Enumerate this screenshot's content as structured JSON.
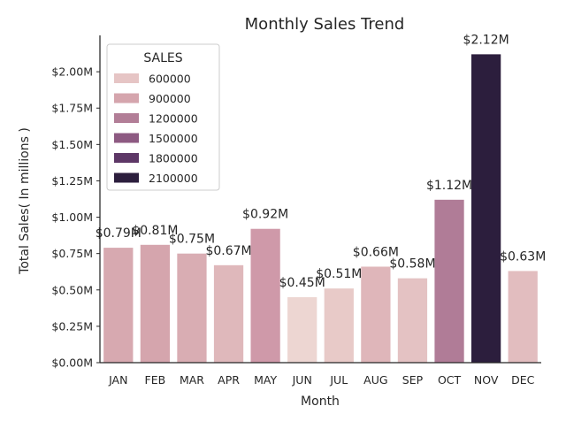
{
  "chart_data": {
    "type": "bar",
    "title": "Monthly Sales Trend",
    "xlabel": "Month",
    "ylabel": "Total Sales( In millions )",
    "categories": [
      "JAN",
      "FEB",
      "MAR",
      "APR",
      "MAY",
      "JUN",
      "JUL",
      "AUG",
      "SEP",
      "OCT",
      "NOV",
      "DEC"
    ],
    "values": [
      790000,
      810000,
      750000,
      670000,
      920000,
      450000,
      510000,
      660000,
      580000,
      1120000,
      2120000,
      630000
    ],
    "data_labels": [
      "$0.79M",
      "$0.81M",
      "$0.75M",
      "$0.67M",
      "$0.92M",
      "$0.45M",
      "$0.51M",
      "$0.66M",
      "$0.58M",
      "$1.12M",
      "$2.12M",
      "$0.63M"
    ],
    "ylim": [
      0,
      2250000
    ],
    "yticks": [
      0,
      250000,
      500000,
      750000,
      1000000,
      1250000,
      1500000,
      1750000,
      2000000
    ],
    "ytick_labels": [
      "$0.00M",
      "$0.25M",
      "$0.50M",
      "$0.75M",
      "$1.00M",
      "$1.25M",
      "$1.50M",
      "$1.75M",
      "$2.00M"
    ],
    "grid": false,
    "legend": {
      "title": "SALES",
      "placement": "top-left",
      "entries": [
        "600000",
        "900000",
        "1200000",
        "1500000",
        "1800000",
        "2100000"
      ],
      "entry_values": [
        600000,
        900000,
        1200000,
        1500000,
        1800000,
        2100000
      ]
    },
    "colors": {
      "palette_low": "#edd6d2",
      "palette_high": "#2c1e3d",
      "bar_colors": [
        "#d7a9b0",
        "#d5a5ad",
        "#d9adb3",
        "#dfb8bb",
        "#cf99a9",
        "#edd6d2",
        "#e8cac8",
        "#dfb6ba",
        "#e4c2c3",
        "#b07c97",
        "#2c1e3d",
        "#e2bdbf"
      ],
      "legend_colors": [
        "#e6c5c5",
        "#d5a5ad",
        "#b27e97",
        "#8d5a82",
        "#5d3766",
        "#2c1e3d"
      ],
      "axis": "#262626",
      "text": "#262626"
    }
  }
}
